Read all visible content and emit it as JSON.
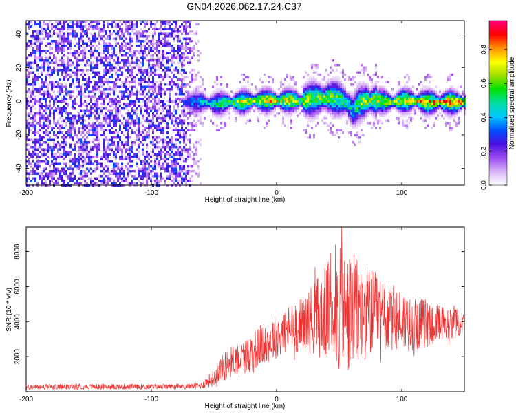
{
  "title": "GN04.2026.062.17.24.C37",
  "colors": {
    "snr_line": "#f03232",
    "spectro_background_noise": "#7a2ad6",
    "colormap": [
      "#ffffff",
      "#d9b3f7",
      "#9a4af0",
      "#4a10e0",
      "#0050ff",
      "#00c8ff",
      "#00e0a0",
      "#00e000",
      "#a0e000",
      "#ffff00",
      "#ff9000",
      "#ff0000",
      "#ff0080"
    ]
  },
  "chart_data": [
    {
      "type": "heatmap",
      "xlabel": "Height of straight line (km)",
      "ylabel": "Frequency (Hz)",
      "xlim": [
        -200,
        150
      ],
      "ylim": [
        -50,
        48
      ],
      "xticks": [
        -200,
        -100,
        0,
        100
      ],
      "yticks": [
        -40,
        -20,
        0,
        20,
        40
      ],
      "colorbar": {
        "label": "Normalized spectral amplitude",
        "range": [
          0.0,
          0.97
        ],
        "ticks": [
          0.0,
          0.2,
          0.4,
          0.6,
          0.8
        ],
        "tick_labels": [
          "0.0",
          "0.2",
          "0.4",
          "0.6",
          "0.8"
        ]
      },
      "regions": [
        {
          "x_range": [
            -200,
            -60
          ],
          "description_value": "broadband noise, amplitude 0.1-0.3 across all frequencies"
        },
        {
          "x_range": [
            -75,
            150
          ],
          "center_freq_hz": 0,
          "band_halfwidth_hz": [
            3,
            8
          ],
          "peak_amplitude": 0.95
        }
      ],
      "ridge": {
        "x": [
          -75,
          -60,
          -50,
          -40,
          -30,
          -20,
          -10,
          0,
          10,
          20,
          30,
          40,
          50,
          55,
          60,
          65,
          70,
          80,
          90,
          100,
          110,
          120,
          130,
          140,
          150
        ],
        "freq": [
          0,
          0,
          -1,
          0,
          0,
          1,
          1,
          1,
          1,
          1,
          2,
          3,
          2,
          0,
          -5,
          -1,
          1,
          1,
          0,
          1,
          1,
          0,
          0,
          0,
          0
        ],
        "amplitude": [
          0.3,
          0.45,
          0.55,
          0.6,
          0.7,
          0.75,
          0.8,
          0.8,
          0.75,
          0.7,
          0.65,
          0.65,
          0.6,
          0.6,
          0.5,
          0.6,
          0.7,
          0.75,
          0.7,
          0.75,
          0.8,
          0.85,
          0.85,
          0.85,
          0.85
        ]
      }
    },
    {
      "type": "line",
      "xlabel": "Height of straight line (km)",
      "ylabel": "SNR (10 * v/v)",
      "xlim": [
        -200,
        150
      ],
      "ylim": [
        0,
        9400
      ],
      "xticks": [
        -200,
        -100,
        0,
        100
      ],
      "yticks": [
        2000,
        4000,
        6000,
        8000
      ],
      "series": [
        {
          "envelope_x": [
            -200,
            -150,
            -100,
            -70,
            -60,
            -50,
            -45,
            -40,
            -35,
            -30,
            -25,
            -20,
            -10,
            0,
            10,
            20,
            25,
            30,
            40,
            45,
            50,
            55,
            60,
            65,
            70,
            80,
            90,
            100,
            110,
            120,
            130,
            140,
            150
          ],
          "envelope_mean": [
            250,
            280,
            280,
            300,
            350,
            800,
            1300,
            1500,
            1800,
            1900,
            2000,
            2300,
            2700,
            3200,
            3600,
            3800,
            4000,
            4200,
            4500,
            4700,
            4600,
            4400,
            4500,
            4400,
            4600,
            4400,
            4200,
            4100,
            3900,
            3900,
            3800,
            3900,
            3900
          ],
          "envelope_halfrange": [
            150,
            150,
            150,
            150,
            200,
            500,
            700,
            900,
            900,
            1000,
            1000,
            1100,
            1200,
            1300,
            1400,
            1600,
            1800,
            2200,
            2800,
            3300,
            3600,
            3800,
            3500,
            3200,
            2800,
            2400,
            2000,
            1800,
            1600,
            1400,
            1200,
            900,
            700
          ],
          "peak_values": [
            {
              "x": 52,
              "y": 9400
            },
            {
              "x": 47,
              "y": 8400
            },
            {
              "x": 43,
              "y": 7900
            }
          ]
        }
      ]
    }
  ]
}
